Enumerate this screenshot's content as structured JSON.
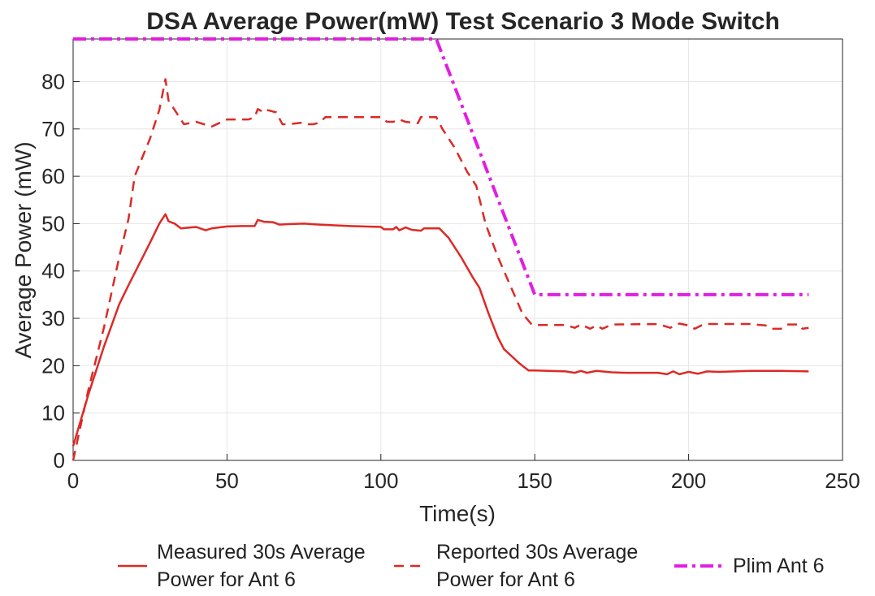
{
  "chart_data": {
    "type": "line",
    "title": "DSA Average Power(mW) Test Scenario 3 Mode Switch",
    "xlabel": "Time(s)",
    "ylabel": "Average Power (mW)",
    "xlim": [
      0,
      250
    ],
    "ylim": [
      0,
      89
    ],
    "xticks": [
      0,
      50,
      100,
      150,
      200,
      250
    ],
    "yticks": [
      0,
      10,
      20,
      30,
      40,
      50,
      60,
      70,
      80
    ],
    "grid": true,
    "legend": "bottom",
    "series": [
      {
        "name": "Measured 30s Average Power for Ant 6",
        "color": "#dc2a26",
        "linestyle": "solid",
        "x": [
          0,
          5,
          10,
          15,
          18,
          25,
          28,
          30,
          31,
          33,
          35,
          40,
          43,
          45,
          50,
          55,
          59,
          60,
          62,
          65,
          67,
          70,
          75,
          80,
          90,
          100,
          101,
          104,
          105,
          106,
          108,
          110,
          113,
          114,
          119,
          122,
          126,
          130,
          132,
          135,
          138,
          140,
          145,
          148,
          150,
          160,
          163,
          165,
          167,
          170,
          175,
          180,
          190,
          193,
          195,
          197,
          200,
          203,
          206,
          210,
          220,
          230,
          239
        ],
        "values": [
          3,
          14,
          24,
          33,
          37,
          46,
          50,
          52,
          50.5,
          50,
          49,
          49.3,
          48.6,
          49,
          49.4,
          49.5,
          49.5,
          50.8,
          50.4,
          50.3,
          49.8,
          49.9,
          50,
          49.8,
          49.5,
          49.3,
          48.8,
          48.8,
          49.3,
          48.6,
          49.2,
          48.7,
          48.5,
          49,
          49,
          47,
          43,
          38.5,
          36.5,
          31,
          26,
          23.5,
          20.5,
          19,
          19,
          18.8,
          18.5,
          18.9,
          18.5,
          18.9,
          18.6,
          18.5,
          18.5,
          18.2,
          18.8,
          18.2,
          18.7,
          18.3,
          18.8,
          18.7,
          18.9,
          18.9,
          18.8
        ]
      },
      {
        "name": "Reported 30s Average Power for Ant 6",
        "color": "#dc2a26",
        "linestyle": "dashed",
        "x": [
          0,
          5,
          10,
          15,
          18,
          20,
          25,
          28,
          30,
          31,
          33,
          36,
          40,
          45,
          50,
          57,
          59,
          60,
          62,
          63,
          66,
          68,
          70,
          74,
          75,
          78,
          80,
          82,
          90,
          100,
          102,
          104,
          106,
          108,
          112,
          113,
          118,
          120,
          124,
          128,
          131,
          134,
          138,
          142,
          146,
          149,
          150,
          160,
          163,
          165,
          168,
          170,
          172,
          175,
          190,
          194,
          197,
          200,
          202,
          205,
          220,
          225,
          227,
          230,
          232,
          236,
          237,
          239
        ],
        "values": [
          0,
          15,
          28,
          43,
          51,
          60,
          68,
          74,
          80.5,
          76,
          74,
          71,
          71.5,
          70.5,
          72,
          72,
          72.5,
          74.2,
          73.5,
          74,
          73.5,
          71,
          71,
          71.3,
          71,
          71,
          71.3,
          72.5,
          72.5,
          72.5,
          71.5,
          71.5,
          72,
          71.5,
          71.2,
          72.5,
          72.5,
          70,
          66,
          61,
          58,
          50,
          43,
          37,
          31,
          28.7,
          28.6,
          28.6,
          28,
          28.7,
          27.8,
          28.5,
          27.8,
          28.7,
          28.8,
          28,
          28.9,
          28.5,
          27.8,
          28.8,
          28.8,
          28.5,
          27.8,
          27.8,
          28.7,
          28.7,
          27.8,
          28
        ]
      },
      {
        "name": "Plim Ant 6",
        "color": "#e11ee1",
        "linestyle": "dashdot",
        "x": [
          0,
          118,
          150,
          239
        ],
        "values": [
          89,
          89,
          35,
          35
        ]
      }
    ]
  }
}
